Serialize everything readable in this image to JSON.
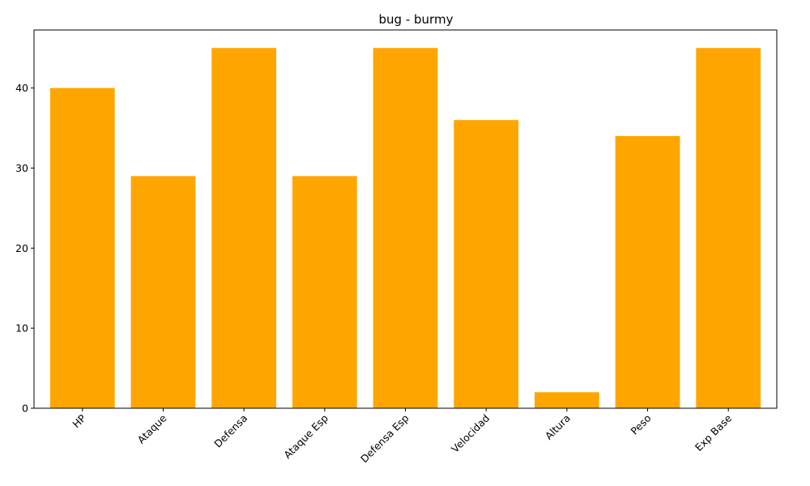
{
  "chart_data": {
    "type": "bar",
    "title": "bug - burmy",
    "xlabel": "",
    "ylabel": "",
    "categories": [
      "HP",
      "Ataque",
      "Defensa",
      "Ataque Esp",
      "Defensa Esp",
      "Velocidad",
      "Altura",
      "Peso",
      "Exp Base"
    ],
    "values": [
      40,
      29,
      45,
      29,
      45,
      36,
      2,
      34,
      45
    ],
    "ylim": [
      0,
      47.25
    ],
    "yticks": [
      0,
      10,
      20,
      30,
      40
    ],
    "bar_color": "#FFA500",
    "grid": false,
    "x_tick_rotation_deg": 45
  }
}
